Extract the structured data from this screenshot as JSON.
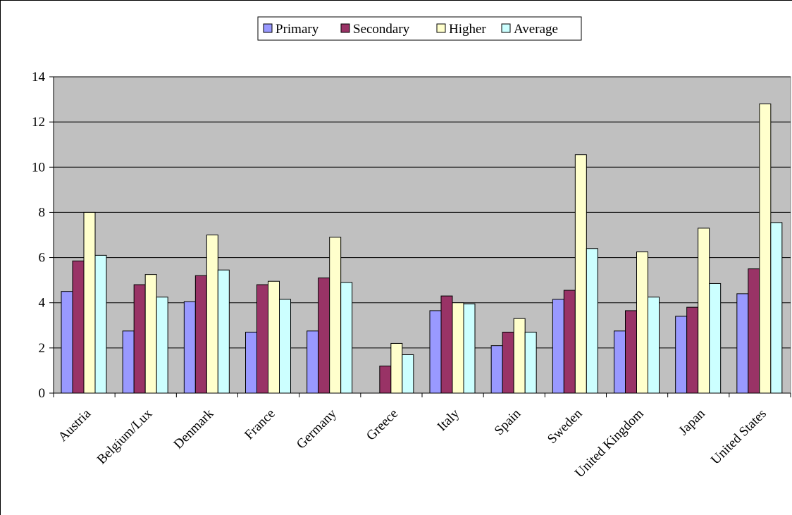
{
  "chart_data": {
    "type": "bar",
    "categories": [
      "Austria",
      "Belgium/Lux",
      "Denmark",
      "France",
      "Germany",
      "Greece",
      "Italy",
      "Spain",
      "Sweden",
      "United Kingdom",
      "Japan",
      "United States"
    ],
    "series": [
      {
        "name": "Primary",
        "color": "#9999ff",
        "values": [
          4.5,
          2.75,
          4.05,
          2.7,
          2.75,
          0,
          3.65,
          2.1,
          4.15,
          2.75,
          3.4,
          4.4
        ]
      },
      {
        "name": "Secondary",
        "color": "#993366",
        "values": [
          5.85,
          4.8,
          5.2,
          4.8,
          5.1,
          1.2,
          4.3,
          2.7,
          4.55,
          3.65,
          3.8,
          5.5
        ]
      },
      {
        "name": "Higher",
        "color": "#ffffcc",
        "values": [
          8.0,
          5.25,
          7.0,
          4.95,
          6.9,
          2.2,
          4.0,
          3.3,
          10.55,
          6.25,
          7.3,
          12.8
        ]
      },
      {
        "name": "Average",
        "color": "#ccffff",
        "values": [
          6.1,
          4.25,
          5.45,
          4.15,
          4.9,
          1.7,
          3.95,
          2.7,
          6.4,
          4.25,
          4.85,
          7.55
        ]
      }
    ],
    "ylim": [
      0,
      14
    ],
    "yticks": [
      "0",
      "2",
      "4",
      "6",
      "8",
      "10",
      "12",
      "14"
    ],
    "grid": true,
    "legend_position": "top"
  }
}
